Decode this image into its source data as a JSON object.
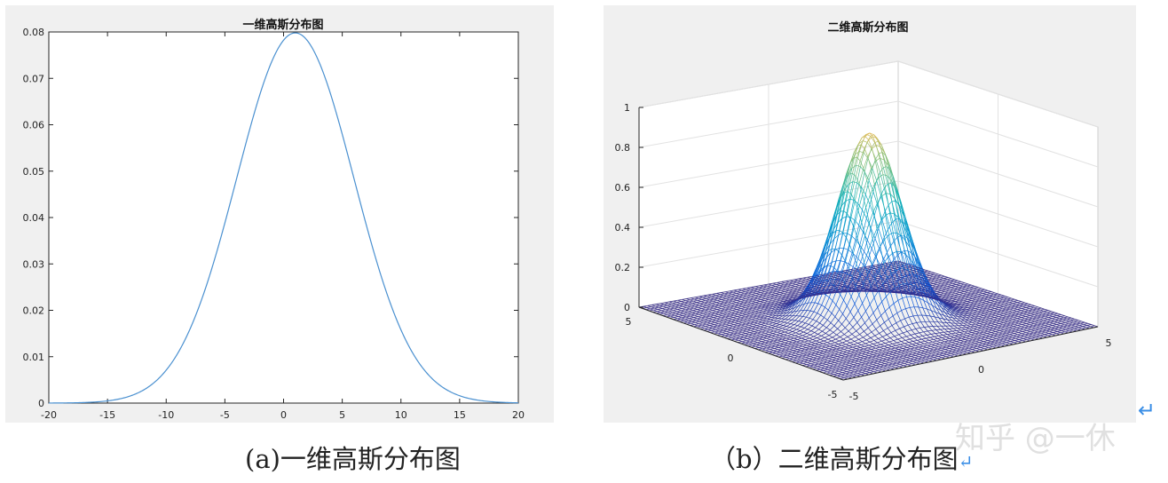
{
  "chart_data": [
    {
      "type": "line",
      "title": "一维高斯分布图",
      "xlim": [
        -20,
        20
      ],
      "ylim": [
        0,
        0.08
      ],
      "xticks": [
        "-20",
        "-15",
        "-10",
        "-5",
        "0",
        "5",
        "10",
        "15",
        "20"
      ],
      "yticks": [
        "0",
        "0.01",
        "0.02",
        "0.03",
        "0.04",
        "0.05",
        "0.06",
        "0.07",
        "0.08"
      ],
      "series": [
        {
          "function": "gaussian",
          "mean": 1,
          "sigma": 5,
          "peak": 0.0798,
          "color": "#4a90d0",
          "sample_points": {
            "x": [
              -20,
              -15,
              -10,
              -5,
              0,
              1,
              5,
              10,
              15,
              20
            ],
            "y": [
              0.0001,
              0.0005,
              0.0071,
              0.0388,
              0.0782,
              0.0798,
              0.0579,
              0.0158,
              0.0016,
              0.0001
            ]
          }
        }
      ]
    },
    {
      "type": "surface",
      "title": "二维高斯分布图",
      "xlim": [
        -5,
        5
      ],
      "ylim": [
        -5,
        5
      ],
      "zlim": [
        0,
        1
      ],
      "xticks": [
        "-5",
        "0",
        "5"
      ],
      "yticks": [
        "-5",
        "0",
        "5"
      ],
      "zticks": [
        "0",
        "0.2",
        "0.4",
        "0.6",
        "0.8",
        "1"
      ],
      "function": "exp(-(x^2+y^2)/2)",
      "peak": 0.93,
      "colormap": "parula",
      "grid": true
    }
  ],
  "captions": {
    "a": "(a)一维高斯分布图",
    "b": "（b）二维高斯分布图",
    "return_mark": "↵"
  },
  "watermark": {
    "text": "知乎 @一休",
    "arrow": "↵"
  }
}
